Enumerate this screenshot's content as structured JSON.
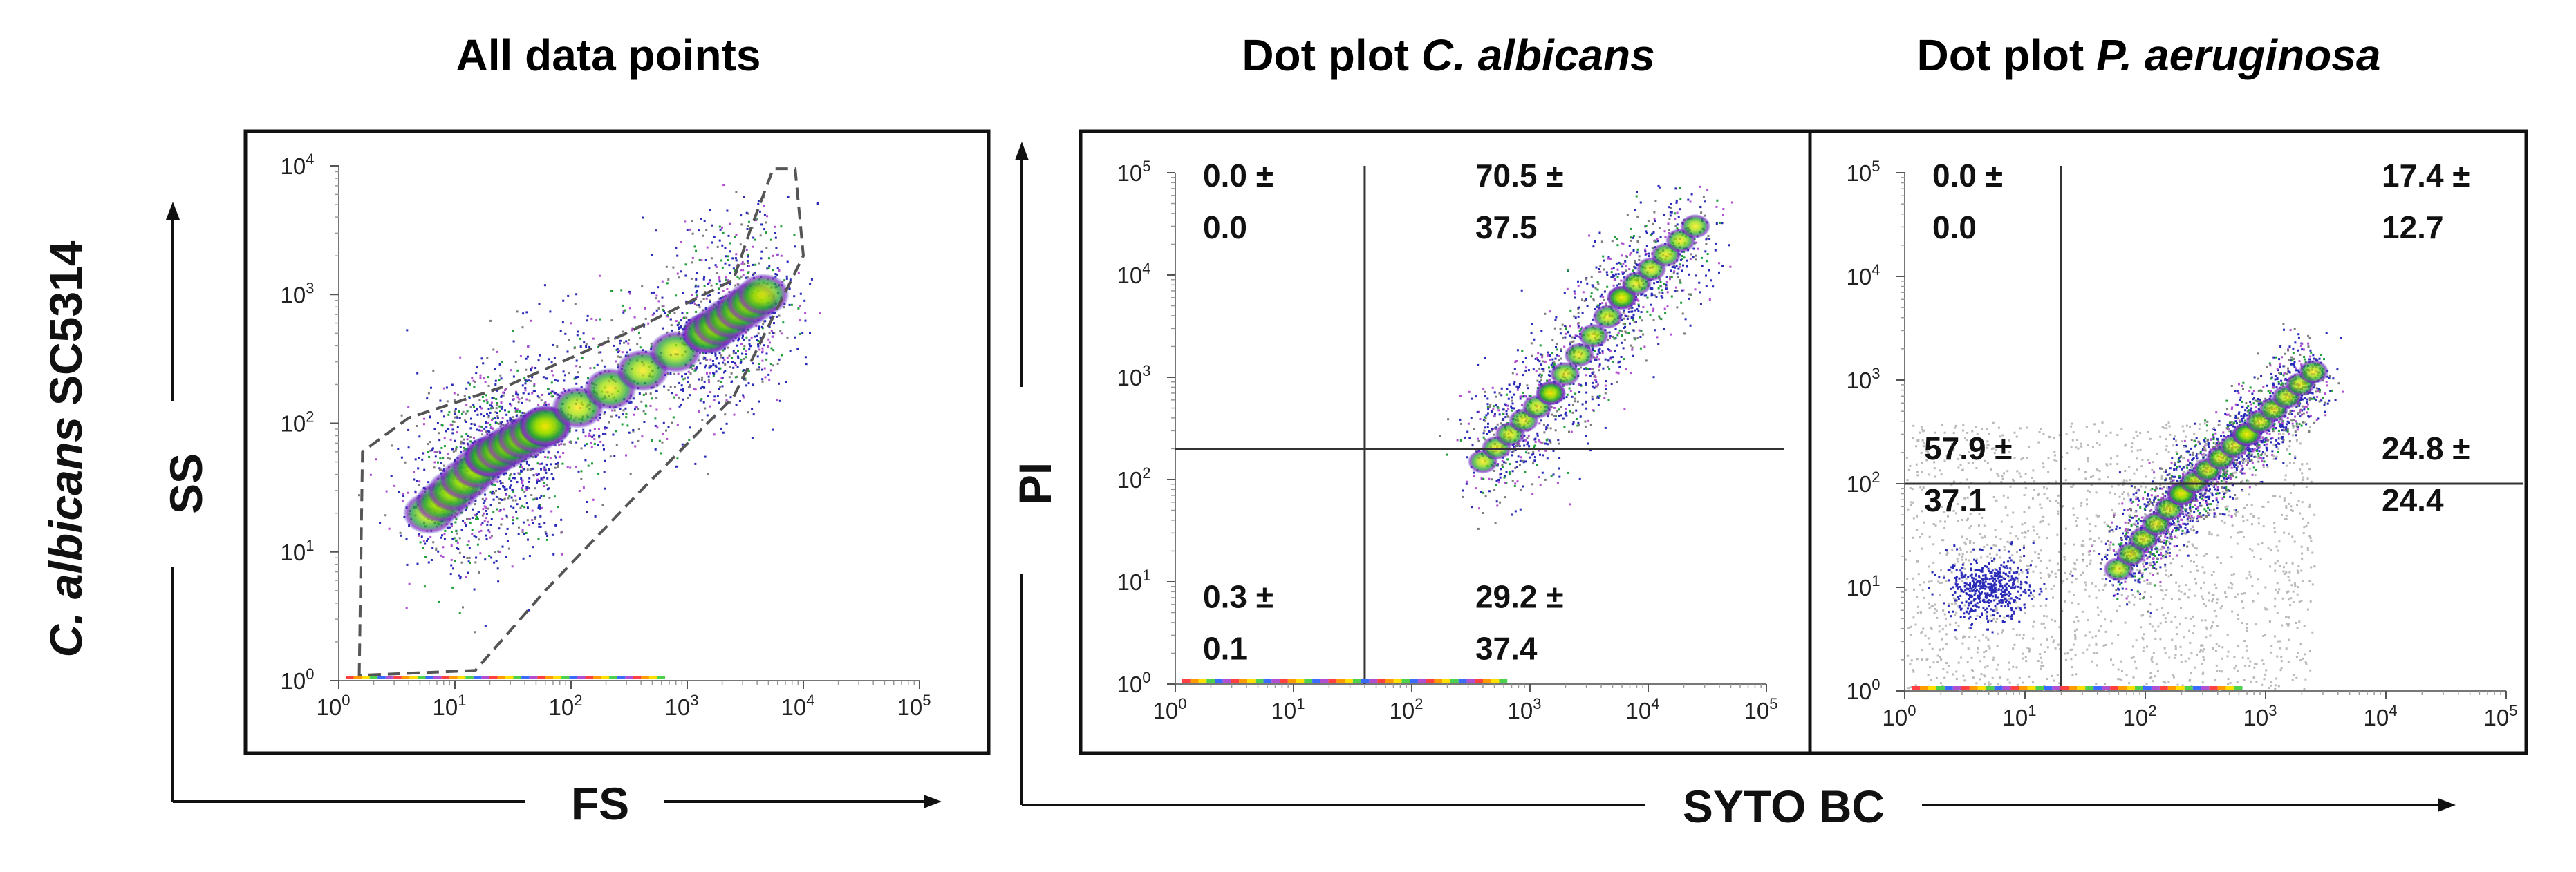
{
  "figure": {
    "row_label_italic": "C. albicans",
    "row_label_rest": "SC5314",
    "ss_label": "SS",
    "fs_label": "FS",
    "pi_label": "PI",
    "syto_label": "SYTO BC"
  },
  "chart_data": [
    {
      "type": "scatter",
      "title": "All data points",
      "title_italic": "",
      "xlabel": "FS",
      "ylabel": "SS",
      "x_scale": "log",
      "y_scale": "log",
      "xlim": [
        1,
        100000
      ],
      "ylim": [
        1,
        10000
      ],
      "x_ticks": [
        "10",
        "10",
        "10",
        "10",
        "10",
        "10"
      ],
      "x_tick_exp": [
        "0",
        "1",
        "2",
        "3",
        "4",
        "5"
      ],
      "y_ticks": [
        "10",
        "10",
        "10",
        "10",
        "10"
      ],
      "y_tick_exp": [
        "0",
        "1",
        "2",
        "3",
        "4"
      ],
      "quadrants": [],
      "gate_polygon": [
        [
          1.5,
          1.1
        ],
        [
          1.6,
          60
        ],
        [
          4,
          110
        ],
        [
          30,
          200
        ],
        [
          300,
          500
        ],
        [
          2500,
          1300
        ],
        [
          3500,
          3200
        ],
        [
          5500,
          9500
        ],
        [
          8500,
          9500
        ],
        [
          10000,
          2000
        ],
        [
          2500,
          160
        ],
        [
          400,
          30
        ],
        [
          60,
          5
        ],
        [
          15,
          1.2
        ]
      ],
      "density_core": [
        [
          6,
          20
        ],
        [
          20,
          55
        ],
        [
          60,
          95
        ],
        [
          1500,
          500
        ],
        [
          4500,
          1000
        ]
      ]
    },
    {
      "type": "scatter",
      "title": "Dot plot ",
      "title_italic": "C. albicans",
      "xlabel": "SYTO BC",
      "ylabel": "PI",
      "x_scale": "log",
      "y_scale": "log",
      "xlim": [
        1,
        100000
      ],
      "ylim": [
        1,
        100000
      ],
      "x_ticks": [
        "10",
        "10",
        "10",
        "10",
        "10",
        "10"
      ],
      "x_tick_exp": [
        "0",
        "1",
        "2",
        "3",
        "4",
        "5"
      ],
      "y_ticks": [
        "10",
        "10",
        "10",
        "10",
        "10",
        "10"
      ],
      "y_tick_exp": [
        "0",
        "1",
        "2",
        "3",
        "4",
        "5"
      ],
      "quadrant_gate": {
        "x": 40,
        "y": 200
      },
      "quadrants": [
        {
          "position": "top-left",
          "line1": "0.0 ±",
          "line2": "0.0"
        },
        {
          "position": "top-right",
          "line1": "70.5 ±",
          "line2": "37.5"
        },
        {
          "position": "bottom-left",
          "line1": "0.3 ±",
          "line2": "0.1"
        },
        {
          "position": "bottom-right",
          "line1": "29.2 ±",
          "line2": "37.4"
        }
      ],
      "density_core": [
        [
          400,
          150
        ],
        [
          1500,
          700
        ],
        [
          6000,
          6000
        ],
        [
          25000,
          30000
        ]
      ]
    },
    {
      "type": "scatter",
      "title": "Dot plot ",
      "title_italic": "P. aeruginosa",
      "xlabel": "SYTO BC",
      "ylabel": "PI",
      "x_scale": "log",
      "y_scale": "log",
      "xlim": [
        1,
        100000
      ],
      "ylim": [
        1,
        100000
      ],
      "x_ticks": [
        "10",
        "10",
        "10",
        "10",
        "10",
        "10"
      ],
      "x_tick_exp": [
        "0",
        "1",
        "2",
        "3",
        "4",
        "5"
      ],
      "y_ticks": [
        "10",
        "10",
        "10",
        "10",
        "10",
        "10"
      ],
      "y_tick_exp": [
        "0",
        "1",
        "2",
        "3",
        "4",
        "5"
      ],
      "quadrant_gate": {
        "x": 20,
        "y": 100
      },
      "quadrants": [
        {
          "position": "top-left",
          "line1": "0.0 ±",
          "line2": "0.0"
        },
        {
          "position": "top-right",
          "line1": "17.4 ±",
          "line2": "12.7"
        },
        {
          "position": "bottom-left",
          "line1": "57.9 ±",
          "line2": "37.1"
        },
        {
          "position": "bottom-right",
          "line1": "24.8 ±",
          "line2": "24.4"
        }
      ],
      "density_core": [
        [
          60,
          15
        ],
        [
          200,
          80
        ],
        [
          700,
          300
        ],
        [
          2500,
          1200
        ]
      ]
    }
  ]
}
